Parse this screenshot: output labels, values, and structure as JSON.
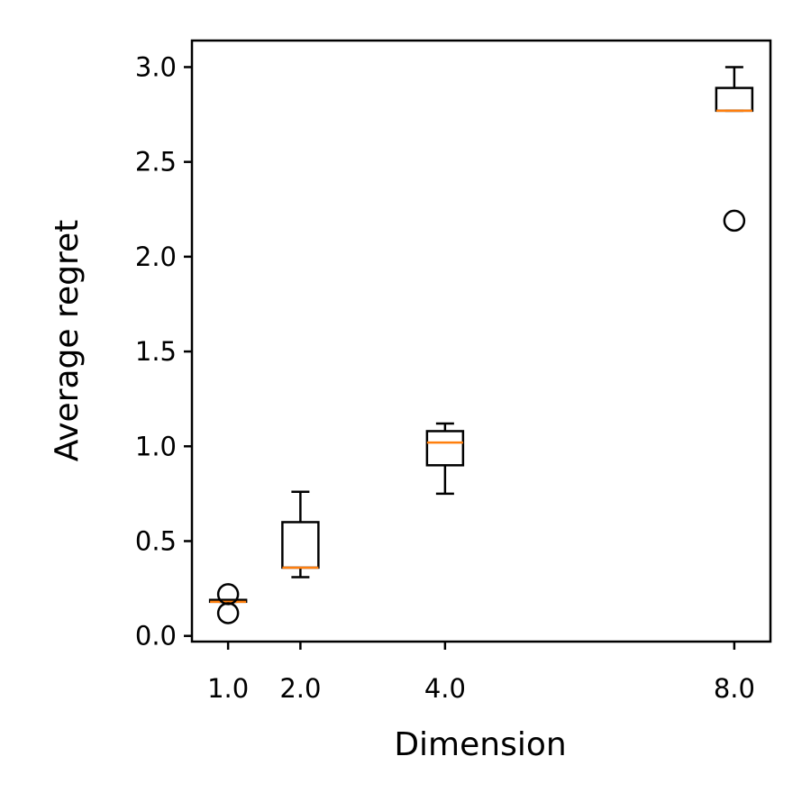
{
  "chart_data": {
    "type": "box",
    "title": "",
    "xlabel": "Dimension",
    "ylabel": "Average regret",
    "xlim": [
      0.5,
      8.5
    ],
    "ylim": [
      -0.03,
      3.14
    ],
    "x_ticks": [
      1.0,
      2.0,
      4.0,
      8.0
    ],
    "x_tick_labels": [
      "1.0",
      "2.0",
      "4.0",
      "8.0"
    ],
    "y_ticks": [
      0.0,
      0.5,
      1.0,
      1.5,
      2.0,
      2.5,
      3.0
    ],
    "y_tick_labels": [
      "0.0",
      "0.5",
      "1.0",
      "1.5",
      "2.0",
      "2.5",
      "3.0"
    ],
    "grid": false,
    "legend": "none",
    "colors": {
      "box": "#000000",
      "median": "#ff7f0e"
    },
    "boxes": [
      {
        "position": 1.0,
        "whisker_low": 0.18,
        "q1": 0.18,
        "median": 0.18,
        "q3": 0.19,
        "whisker_high": 0.19,
        "fliers": [
          0.22,
          0.12
        ]
      },
      {
        "position": 2.0,
        "whisker_low": 0.31,
        "q1": 0.36,
        "median": 0.36,
        "q3": 0.6,
        "whisker_high": 0.76,
        "fliers": []
      },
      {
        "position": 4.0,
        "whisker_low": 0.75,
        "q1": 0.9,
        "median": 1.02,
        "q3": 1.08,
        "whisker_high": 1.12,
        "fliers": []
      },
      {
        "position": 8.0,
        "whisker_low": 2.77,
        "q1": 2.77,
        "median": 2.77,
        "q3": 2.89,
        "whisker_high": 3.0,
        "fliers": [
          2.19
        ]
      }
    ]
  }
}
